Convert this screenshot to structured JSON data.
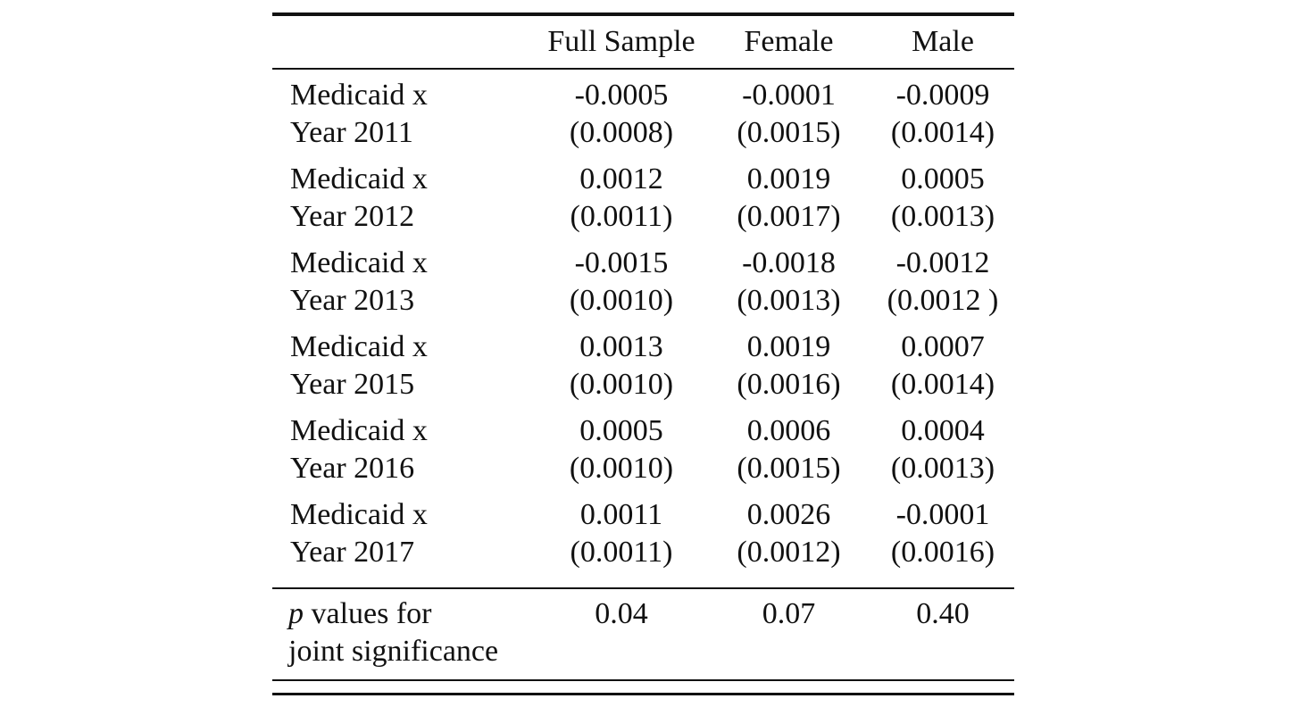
{
  "table": {
    "headers": [
      "",
      "Full Sample",
      "Female",
      "Male"
    ],
    "rows": [
      {
        "label_line1": "Medicaid x",
        "label_line2": "Year 2011",
        "coef": [
          "-0.0005",
          "-0.0001",
          "-0.0009"
        ],
        "se": [
          "(0.0008)",
          "(0.0015)",
          "(0.0014)"
        ]
      },
      {
        "label_line1": "Medicaid x",
        "label_line2": "Year 2012",
        "coef": [
          "0.0012",
          "0.0019",
          "0.0005"
        ],
        "se": [
          "(0.0011)",
          "(0.0017)",
          "(0.0013)"
        ]
      },
      {
        "label_line1": "Medicaid x",
        "label_line2": "Year 2013",
        "coef": [
          "-0.0015",
          "-0.0018",
          "-0.0012"
        ],
        "se": [
          "(0.0010)",
          "(0.0013)",
          "(0.0012 )"
        ]
      },
      {
        "label_line1": "Medicaid x",
        "label_line2": "Year 2015",
        "coef": [
          "0.0013",
          "0.0019",
          "0.0007"
        ],
        "se": [
          "(0.0010)",
          "(0.0016)",
          "(0.0014)"
        ]
      },
      {
        "label_line1": "Medicaid x",
        "label_line2": "Year 2016",
        "coef": [
          "0.0005",
          "0.0006",
          "0.0004"
        ],
        "se": [
          "(0.0010)",
          "(0.0015)",
          "(0.0013)"
        ]
      },
      {
        "label_line1": "Medicaid x",
        "label_line2": "Year 2017",
        "coef": [
          "0.0011",
          "0.0026",
          "-0.0001"
        ],
        "se": [
          "(0.0011)",
          "(0.0012)",
          "(0.0016)"
        ]
      }
    ],
    "footer": {
      "label_italic": "p",
      "label_rest_line1": " values for",
      "label_line2": "joint significance",
      "values": [
        "0.04",
        "0.07",
        "0.40"
      ]
    }
  }
}
